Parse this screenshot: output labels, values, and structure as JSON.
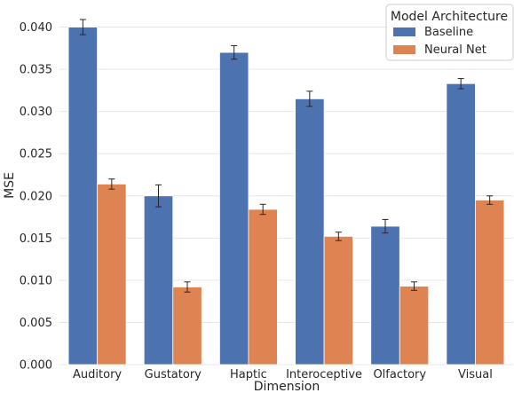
{
  "chart_data": {
    "type": "bar",
    "xlabel": "Dimension",
    "ylabel": "MSE",
    "ylim": [
      0,
      0.043
    ],
    "yticks": [
      "0.000",
      "0.005",
      "0.010",
      "0.015",
      "0.020",
      "0.025",
      "0.030",
      "0.035",
      "0.040"
    ],
    "grid": "horizontal",
    "legend": {
      "title": "Model Architecture",
      "placement": "top-right"
    },
    "categories": [
      "Auditory",
      "Gustatory",
      "Haptic",
      "Interoceptive",
      "Olfactory",
      "Visual"
    ],
    "series": [
      {
        "name": "Baseline",
        "color": "#4c72b0",
        "values": [
          0.04,
          0.02,
          0.037,
          0.0315,
          0.0164,
          0.0333
        ],
        "error": [
          0.0009,
          0.0013,
          0.0008,
          0.0009,
          0.0008,
          0.0006
        ]
      },
      {
        "name": "Neural Net",
        "color": "#dd8452",
        "values": [
          0.0214,
          0.0092,
          0.0184,
          0.0152,
          0.0093,
          0.0195
        ],
        "error": [
          0.0006,
          0.0006,
          0.0006,
          0.0005,
          0.0005,
          0.0005
        ]
      }
    ]
  }
}
